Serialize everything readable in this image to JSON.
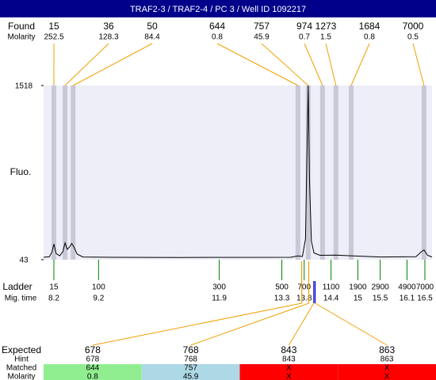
{
  "title": "TRAF2-3 / TRAF2-4 / PC 3 / Well ID 1092217",
  "chart_data": {
    "type": "electropherogram",
    "y_label": "Fluo.",
    "ylim": [
      43,
      1518
    ],
    "yticks": [
      43,
      1518
    ],
    "xlim": [
      7.97,
      16.66
    ],
    "background": "#eeeef8",
    "series": [
      {
        "color": "#000000",
        "x": [
          7.97,
          8.1,
          8.16,
          8.2,
          8.25,
          8.33,
          8.4,
          8.45,
          8.5,
          8.55,
          8.6,
          8.65,
          8.72,
          8.85,
          9.5,
          11,
          13.5,
          13.66,
          13.76,
          13.83,
          13.86,
          13.89,
          13.92,
          13.96,
          14.02,
          14.15,
          14.5,
          14.9,
          15.5,
          16.3,
          16.42,
          16.48,
          16.56,
          16.66
        ],
        "values": [
          63,
          68,
          110,
          175,
          95,
          75,
          110,
          185,
          130,
          150,
          180,
          150,
          90,
          66,
          63,
          62,
          63,
          75,
          70,
          220,
          900,
          1518,
          700,
          200,
          100,
          80,
          82,
          75,
          66,
          68,
          110,
          125,
          80,
          66
        ]
      }
    ],
    "found": {
      "label": "Found",
      "molarity_label": "Molarity",
      "color": "#f0a000",
      "stripe_color": "#c8c8d6",
      "sizes": [
        15,
        36,
        50,
        644,
        757,
        974,
        1273,
        1684,
        7000
      ],
      "molarity": [
        252.5,
        128.3,
        84.4,
        0.8,
        45.9,
        0.7,
        1.5,
        0.8,
        0.5
      ],
      "x": [
        8.2,
        8.45,
        8.63,
        13.66,
        13.89,
        14.21,
        14.51,
        14.85,
        16.48
      ]
    },
    "ladder": {
      "label": "Ladder",
      "time_label": "Mig. time",
      "color": "#008000",
      "sizes": [
        15,
        100,
        300,
        500,
        700,
        1100,
        1900,
        2900,
        4900,
        7000
      ],
      "x": [
        8.2,
        9.2,
        11.9,
        13.3,
        13.8,
        14.4,
        15,
        15.5,
        16.1,
        16.5
      ]
    },
    "expected": {
      "label": "Expected",
      "hint_label": "Hint",
      "matched_label": "Matched",
      "molarity_label": "Molarity",
      "matched_color": "#f0a000",
      "unmatched_color": "#0000cc",
      "sizes": [
        678,
        768,
        843,
        863
      ],
      "hint": [
        678,
        768,
        843,
        863
      ],
      "matched": [
        644,
        757,
        "X",
        "X"
      ],
      "molarity": [
        0.8,
        45.9,
        "X",
        "X"
      ],
      "colors": [
        "#90ee90",
        "#add8e6",
        "#ff0000",
        "#ff0000"
      ]
    }
  }
}
